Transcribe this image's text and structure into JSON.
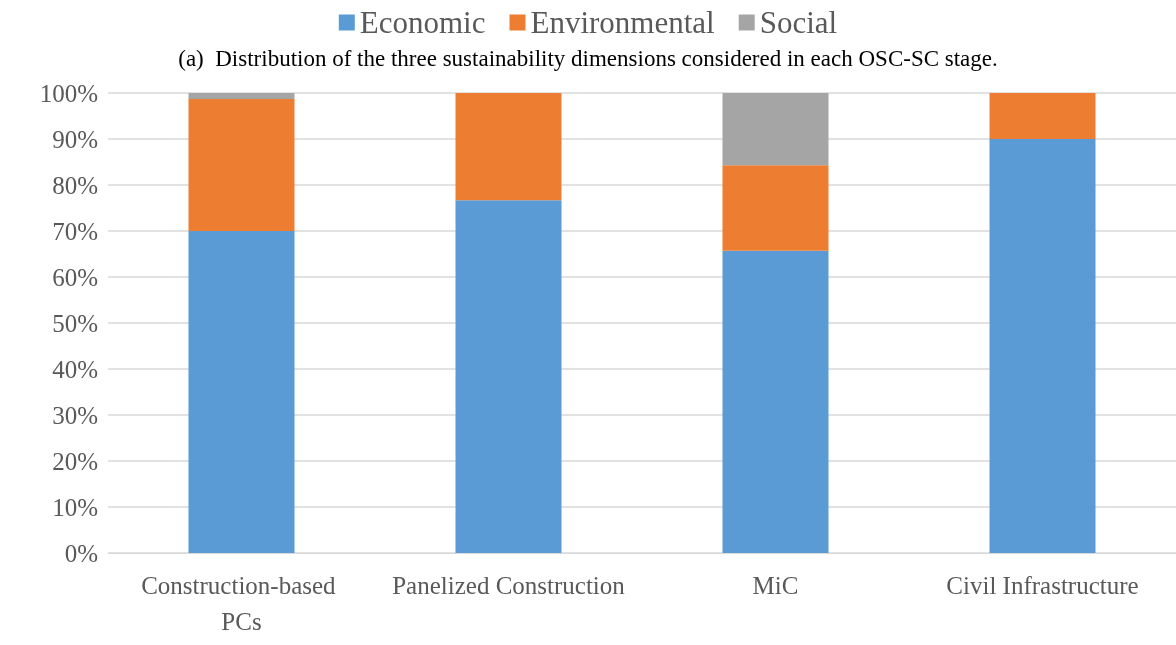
{
  "chart_data": {
    "type": "bar",
    "title": "(a)  Distribution of the three sustainability dimensions considered in each OSC-SC stage.",
    "categories": [
      "Construction-based PCs",
      "Panelized Construction",
      "MiC",
      "Civil Infrastructure"
    ],
    "series": [
      {
        "name": "Economic",
        "color": "#5b9bd5",
        "values": [
          70,
          76.7,
          65.7,
          90
        ]
      },
      {
        "name": "Environmental",
        "color": "#ed7d31",
        "values": [
          28.7,
          23.3,
          18.6,
          10
        ]
      },
      {
        "name": "Social",
        "color": "#a5a5a5",
        "values": [
          1.3,
          0,
          15.7,
          0
        ]
      }
    ],
    "stacked": true,
    "ylim": [
      0,
      100
    ],
    "yticks": [
      {
        "value": 0,
        "label": "0%"
      },
      {
        "value": 10,
        "label": "10%"
      },
      {
        "value": 20,
        "label": "20%"
      },
      {
        "value": 30,
        "label": "30%"
      },
      {
        "value": 40,
        "label": "40%"
      },
      {
        "value": 50,
        "label": "50%"
      },
      {
        "value": 60,
        "label": "60%"
      },
      {
        "value": 70,
        "label": "70%"
      },
      {
        "value": 80,
        "label": "80%"
      },
      {
        "value": 90,
        "label": "90%"
      },
      {
        "value": 100,
        "label": "100%"
      }
    ],
    "grid": "y",
    "legend": "top"
  }
}
